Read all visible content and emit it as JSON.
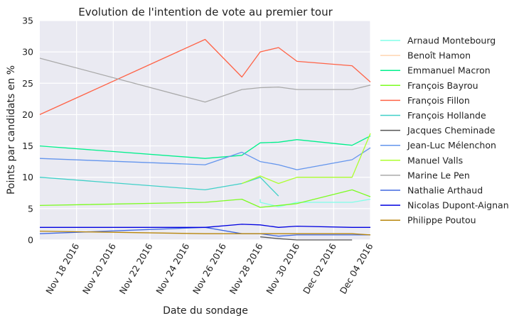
{
  "chart_data": {
    "type": "line",
    "title": "Evolution de l'intention de vote au premier tour",
    "xlabel": "Date du sondage",
    "ylabel": "Points par candidats en %",
    "xlim": [
      "2016-11-16",
      "2016-12-04"
    ],
    "ylim": [
      0,
      35
    ],
    "xticks": [
      "2016-11-18",
      "2016-11-20",
      "2016-11-22",
      "2016-11-24",
      "2016-11-26",
      "2016-11-28",
      "2016-11-30",
      "2016-12-02",
      "2016-12-04"
    ],
    "xtick_labels": [
      "Nov 18 2016",
      "Nov 20 2016",
      "Nov 22 2016",
      "Nov 24 2016",
      "Nov 26 2016",
      "Nov 28 2016",
      "Nov 30 2016",
      "Dec 02 2016",
      "Dec 04 2016"
    ],
    "yticks": [
      0,
      5,
      10,
      15,
      20,
      25,
      30,
      35
    ],
    "grid": true,
    "legend_position": "right",
    "series": [
      {
        "name": "Arnaud Montebourg",
        "color": "#80ffe8",
        "x": [
          "2016-11-28",
          "2016-11-28",
          "2016-11-29",
          "2016-11-30",
          "2016-12-03",
          "2016-12-04"
        ],
        "y": [
          6.5,
          6.0,
          5.3,
          6.0,
          6.0,
          6.5
        ]
      },
      {
        "name": "Benoît Hamon",
        "color": "#ffd5b0",
        "x": [],
        "y": []
      },
      {
        "name": "Emmanuel Macron",
        "color": "#00f08c",
        "x": [
          "2016-11-16",
          "2016-11-25",
          "2016-11-27",
          "2016-11-28",
          "2016-11-29",
          "2016-11-30",
          "2016-12-03",
          "2016-12-04"
        ],
        "y": [
          15,
          13,
          13.5,
          15.5,
          15.6,
          16,
          15.1,
          16.6
        ]
      },
      {
        "name": "François Bayrou",
        "color": "#7cfc20",
        "x": [
          "2016-11-16",
          "2016-11-25",
          "2016-11-27",
          "2016-11-28",
          "2016-11-30",
          "2016-12-03",
          "2016-12-04"
        ],
        "y": [
          5.5,
          6.0,
          6.5,
          5.2,
          5.8,
          8.0,
          6.9
        ]
      },
      {
        "name": "François Fillon",
        "color": "#ff6347",
        "x": [
          "2016-11-16",
          "2016-11-25",
          "2016-11-27",
          "2016-11-28",
          "2016-11-29",
          "2016-11-30",
          "2016-12-03",
          "2016-12-04"
        ],
        "y": [
          20,
          32,
          26,
          30,
          30.7,
          28.5,
          27.8,
          25.2
        ]
      },
      {
        "name": "François Hollande",
        "color": "#40d0c8",
        "x": [
          "2016-11-16",
          "2016-11-25",
          "2016-11-27",
          "2016-11-28",
          "2016-11-29"
        ],
        "y": [
          10,
          8,
          9,
          10,
          7
        ]
      },
      {
        "name": "Jacques Cheminade",
        "color": "#555555",
        "x": [
          "2016-11-28",
          "2016-11-29",
          "2016-11-30",
          "2016-12-03"
        ],
        "y": [
          0.5,
          0.2,
          0,
          0
        ]
      },
      {
        "name": "Jean-Luc Mélenchon",
        "color": "#6495ed",
        "x": [
          "2016-11-16",
          "2016-11-25",
          "2016-11-27",
          "2016-11-28",
          "2016-11-29",
          "2016-11-30",
          "2016-12-03",
          "2016-12-04"
        ],
        "y": [
          13,
          12,
          14,
          12.5,
          12,
          11.2,
          12.8,
          14.7
        ]
      },
      {
        "name": "Manuel Valls",
        "color": "#adff2f",
        "x": [
          "2016-11-27",
          "2016-11-28",
          "2016-11-29",
          "2016-11-30",
          "2016-12-03",
          "2016-12-04"
        ],
        "y": [
          9,
          10.2,
          9,
          10,
          10,
          17
        ]
      },
      {
        "name": "Marine Le Pen",
        "color": "#a9a9a9",
        "x": [
          "2016-11-16",
          "2016-11-25",
          "2016-11-27",
          "2016-11-28",
          "2016-11-29",
          "2016-11-30",
          "2016-12-03",
          "2016-12-04"
        ],
        "y": [
          29,
          22,
          24,
          24.3,
          24.4,
          24,
          24,
          24.7
        ]
      },
      {
        "name": "Nathalie Arthaud",
        "color": "#4169e1",
        "x": [
          "2016-11-16",
          "2016-11-25",
          "2016-11-27",
          "2016-11-28",
          "2016-11-29",
          "2016-11-30",
          "2016-12-03",
          "2016-12-04"
        ],
        "y": [
          1,
          2,
          1,
          1,
          0.6,
          0.8,
          0.8,
          0.8
        ]
      },
      {
        "name": "Nicolas Dupont-Aignan",
        "color": "#0000e0",
        "x": [
          "2016-11-16",
          "2016-11-25",
          "2016-11-27",
          "2016-11-28",
          "2016-11-29",
          "2016-11-30",
          "2016-12-03",
          "2016-12-04"
        ],
        "y": [
          2,
          2,
          2.5,
          2.4,
          2,
          2.2,
          2,
          2
        ]
      },
      {
        "name": "Philippe Poutou",
        "color": "#b8860b",
        "x": [
          "2016-11-16",
          "2016-11-25",
          "2016-11-27",
          "2016-11-28",
          "2016-11-29",
          "2016-11-30",
          "2016-12-03",
          "2016-12-04"
        ],
        "y": [
          1.4,
          1,
          1,
          1,
          1,
          1,
          1,
          0.8
        ]
      }
    ]
  }
}
